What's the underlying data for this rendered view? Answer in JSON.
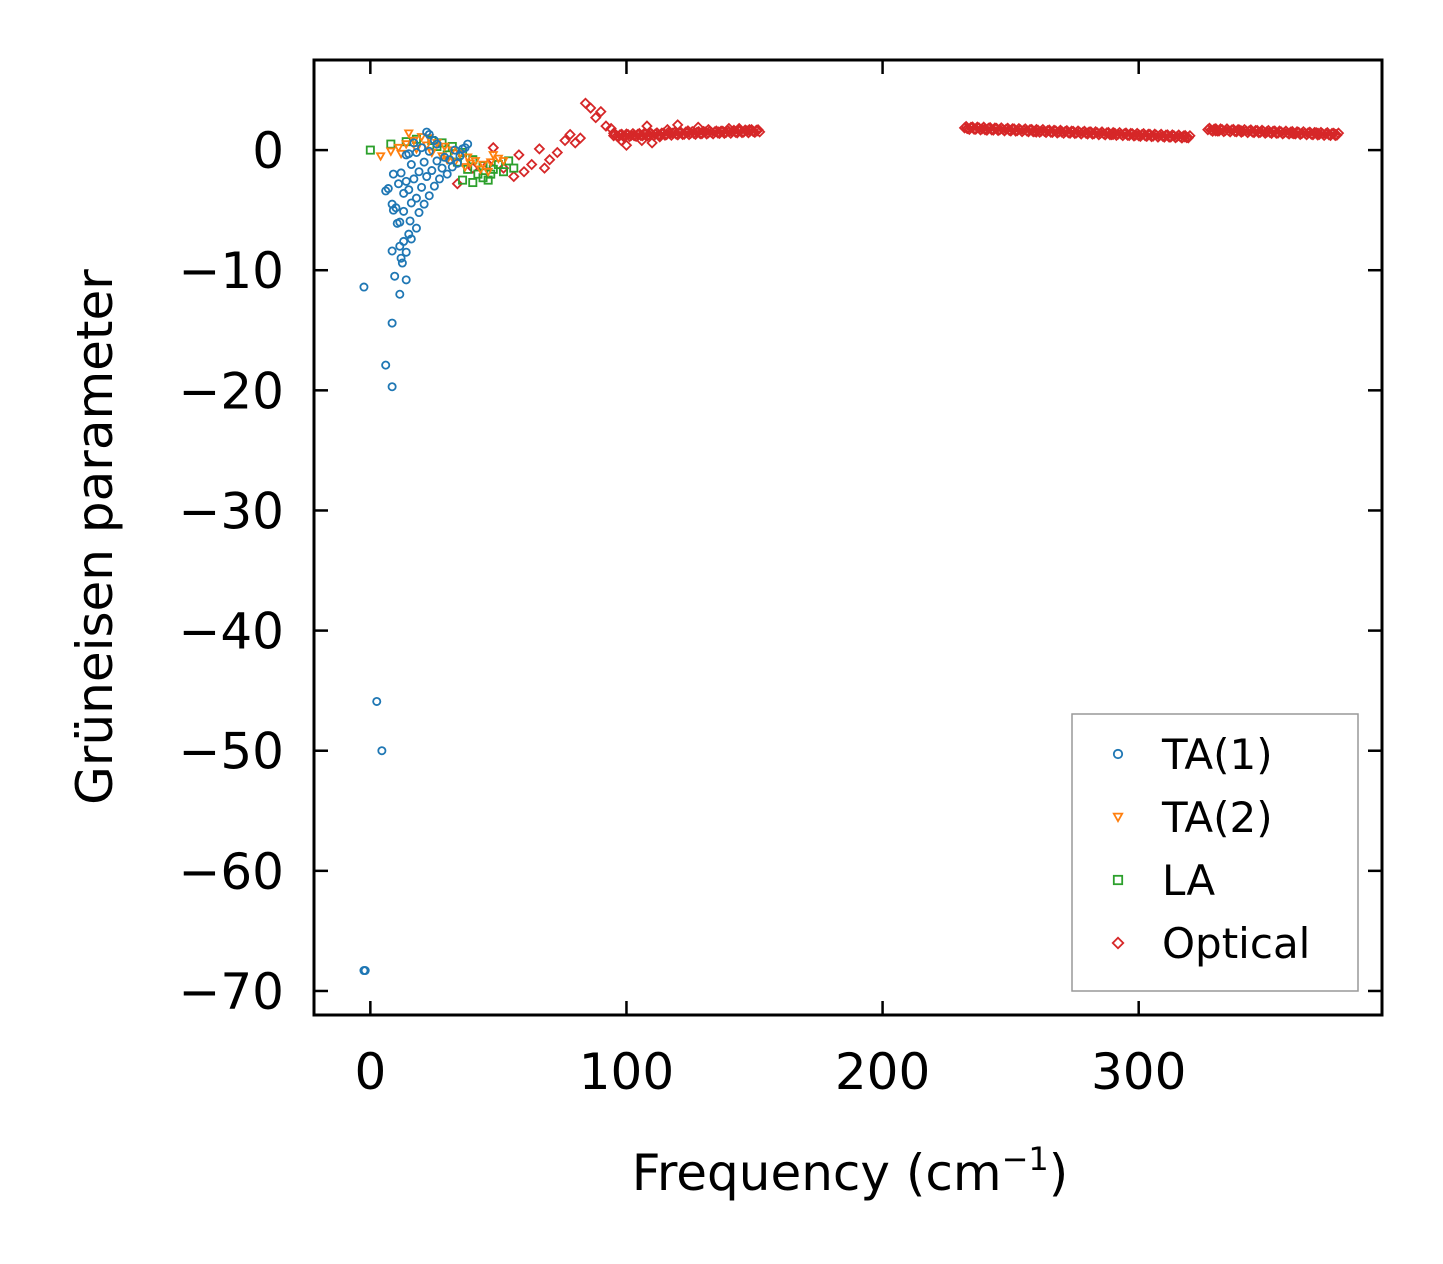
{
  "chart_data": {
    "type": "scatter",
    "title": "",
    "xlabel": "Frequency (cm",
    "xlabel_sup": "−1",
    "xlabel_tail": ")",
    "ylabel": "Grüneisen parameter",
    "xlim": [
      -22,
      395
    ],
    "ylim": [
      -72,
      7.5
    ],
    "xticks": [
      0,
      100,
      200,
      300
    ],
    "xtick_labels": [
      "0",
      "100",
      "200",
      "300"
    ],
    "yticks": [
      0,
      -10,
      -20,
      -30,
      -40,
      -50,
      -60,
      -70
    ],
    "ytick_labels": [
      "0",
      "−10",
      "−20",
      "−30",
      "−40",
      "−50",
      "−60",
      "−70"
    ],
    "legend_position": "lower-right",
    "series": [
      {
        "name": "TA(1)",
        "marker": "circle",
        "color": "#1f77b4",
        "points": [
          [
            -2.5,
            -68.3
          ],
          [
            -2,
            -68.3
          ],
          [
            2.5,
            -45.9
          ],
          [
            4.5,
            -50
          ],
          [
            -2.5,
            -11.4
          ],
          [
            6,
            -17.9
          ],
          [
            8.5,
            -19.7
          ],
          [
            8.5,
            -14.4
          ],
          [
            11.5,
            -12
          ],
          [
            14,
            -10.8
          ],
          [
            9.5,
            -10.5
          ],
          [
            12.5,
            -9.4
          ],
          [
            12,
            -9
          ],
          [
            8.5,
            -8.4
          ],
          [
            14,
            -8.5
          ],
          [
            11.5,
            -8
          ],
          [
            13,
            -7.6
          ],
          [
            16,
            -7.4
          ],
          [
            15,
            -7
          ],
          [
            18,
            -6.5
          ],
          [
            10.5,
            -6.1
          ],
          [
            11.5,
            -6
          ],
          [
            15.5,
            -5.9
          ],
          [
            9,
            -5
          ],
          [
            13,
            -5.1
          ],
          [
            19,
            -5.2
          ],
          [
            10,
            -4.8
          ],
          [
            21,
            -4.5
          ],
          [
            16,
            -4.4
          ],
          [
            8.5,
            -4.5
          ],
          [
            18,
            -4
          ],
          [
            23,
            -3.8
          ],
          [
            7,
            -3.2
          ],
          [
            6,
            -3.4
          ],
          [
            13,
            -3.6
          ],
          [
            15,
            -3.3
          ],
          [
            20,
            -3.1
          ],
          [
            25,
            -3
          ],
          [
            11,
            -2.8
          ],
          [
            14,
            -2.6
          ],
          [
            17,
            -2.4
          ],
          [
            22,
            -2.2
          ],
          [
            27,
            -2.4
          ],
          [
            30,
            -2
          ],
          [
            9,
            -2
          ],
          [
            12,
            -1.9
          ],
          [
            19,
            -1.8
          ],
          [
            24,
            -1.7
          ],
          [
            28,
            -1.5
          ],
          [
            32,
            -1.4
          ],
          [
            16,
            -1.2
          ],
          [
            21,
            -1
          ],
          [
            26,
            -0.9
          ],
          [
            31,
            -0.8
          ],
          [
            35,
            -0.5
          ],
          [
            14,
            -0.4
          ],
          [
            18,
            -0.2
          ],
          [
            23,
            -0.1
          ],
          [
            33,
            0
          ],
          [
            37,
            0.2
          ],
          [
            38,
            0.5
          ],
          [
            36,
            0.1
          ],
          [
            29,
            -0.6
          ],
          [
            34,
            -1.1
          ],
          [
            22,
            1.5
          ],
          [
            23,
            1.3
          ],
          [
            25,
            0.8
          ],
          [
            26,
            0.5
          ],
          [
            15,
            -0.3
          ],
          [
            20,
            0.2
          ],
          [
            17,
            0.6
          ]
        ]
      },
      {
        "name": "TA(2)",
        "marker": "triangle-down",
        "color": "#ff7f0e",
        "points": [
          [
            4,
            -0.5
          ],
          [
            8,
            -0.1
          ],
          [
            11,
            0.2
          ],
          [
            14,
            0.5
          ],
          [
            17,
            0.8
          ],
          [
            20,
            1.1
          ],
          [
            23,
            1
          ],
          [
            26,
            0.6
          ],
          [
            29,
            0.3
          ],
          [
            32,
            0
          ],
          [
            35,
            -0.3
          ],
          [
            38,
            -0.6
          ],
          [
            41,
            -0.9
          ],
          [
            44,
            -1.2
          ],
          [
            47,
            -1
          ],
          [
            50,
            -0.7
          ],
          [
            24,
            -0.2
          ],
          [
            28,
            -0.5
          ],
          [
            33,
            -1
          ],
          [
            37,
            -1.4
          ],
          [
            43,
            -1.6
          ],
          [
            46,
            -1.8
          ],
          [
            18,
            0.1
          ],
          [
            22,
            0.4
          ],
          [
            30,
            -0.8
          ],
          [
            39,
            -1.1
          ],
          [
            48,
            -0.4
          ],
          [
            52,
            -0.9
          ],
          [
            15,
            1.4
          ],
          [
            12,
            -0.3
          ]
        ]
      },
      {
        "name": "LA",
        "marker": "square",
        "color": "#2ca02c",
        "points": [
          [
            0,
            0
          ],
          [
            8,
            0.5
          ],
          [
            14,
            0.7
          ],
          [
            18,
            0.9
          ],
          [
            24,
            0.8
          ],
          [
            28,
            0.6
          ],
          [
            32,
            0.3
          ],
          [
            36,
            -0.2
          ],
          [
            40,
            -0.8
          ],
          [
            44,
            -1.3
          ],
          [
            48,
            -1.6
          ],
          [
            52,
            -1.8
          ],
          [
            56,
            -1.5
          ],
          [
            36,
            -2.5
          ],
          [
            40,
            -2.7
          ],
          [
            44,
            -2.3
          ],
          [
            47,
            -2
          ],
          [
            38,
            -1.6
          ],
          [
            42,
            -2
          ],
          [
            50,
            -1.2
          ],
          [
            54,
            -0.9
          ],
          [
            30,
            -0.4
          ],
          [
            34,
            -1
          ],
          [
            46,
            -2.5
          ],
          [
            26,
            0.3
          ]
        ]
      },
      {
        "name": "Optical",
        "marker": "diamond",
        "color": "#d62728",
        "points": [
          [
            34,
            -2.8
          ],
          [
            40,
            -1.5
          ],
          [
            46,
            -1.2
          ],
          [
            52,
            -1.5
          ],
          [
            56,
            -2.2
          ],
          [
            60,
            -1.8
          ],
          [
            63,
            -1.2
          ],
          [
            68,
            -1.5
          ],
          [
            70,
            -0.8
          ],
          [
            73,
            -0.2
          ],
          [
            76,
            0.8
          ],
          [
            78,
            1.3
          ],
          [
            80,
            0.6
          ],
          [
            84,
            3.9
          ],
          [
            86,
            3.5
          ],
          [
            88,
            2.7
          ],
          [
            90,
            3.2
          ],
          [
            92,
            2
          ],
          [
            95,
            1.4
          ],
          [
            98,
            0.8
          ],
          [
            100,
            0.4
          ],
          [
            103,
            1.2
          ],
          [
            106,
            0.8
          ],
          [
            110,
            0.6
          ],
          [
            113,
            1.1
          ],
          [
            116,
            1.7
          ],
          [
            120,
            2.1
          ],
          [
            124,
            1.6
          ],
          [
            128,
            1.9
          ],
          [
            132,
            1.7
          ],
          [
            136,
            1.5
          ],
          [
            140,
            1.8
          ],
          [
            144,
            1.8
          ],
          [
            148,
            1.7
          ],
          [
            151,
            1.6
          ],
          [
            233,
            1.8
          ],
          [
            240,
            1.7
          ],
          [
            250,
            1.6
          ],
          [
            260,
            1.5
          ],
          [
            270,
            1.5
          ],
          [
            280,
            1.4
          ],
          [
            290,
            1.3
          ],
          [
            300,
            1.2
          ],
          [
            310,
            1.1
          ],
          [
            318,
            1.1
          ],
          [
            330,
            1.6
          ],
          [
            340,
            1.6
          ],
          [
            350,
            1.5
          ],
          [
            360,
            1.4
          ],
          [
            370,
            1.4
          ],
          [
            377,
            1.3
          ],
          [
            48,
            0.2
          ],
          [
            58,
            -0.4
          ],
          [
            66,
            0.1
          ],
          [
            82,
            1
          ],
          [
            94,
            1.8
          ],
          [
            108,
            2
          ],
          [
            118,
            1.4
          ]
        ],
        "bands": [
          {
            "x_start": 232,
            "x_end": 320,
            "y_start": 1.85,
            "y_end": 1.1
          },
          {
            "x_start": 327,
            "x_end": 378,
            "y_start": 1.7,
            "y_end": 1.3
          },
          {
            "x_start": 95,
            "x_end": 152,
            "y_start": 1.2,
            "y_end": 1.6
          }
        ]
      }
    ]
  }
}
